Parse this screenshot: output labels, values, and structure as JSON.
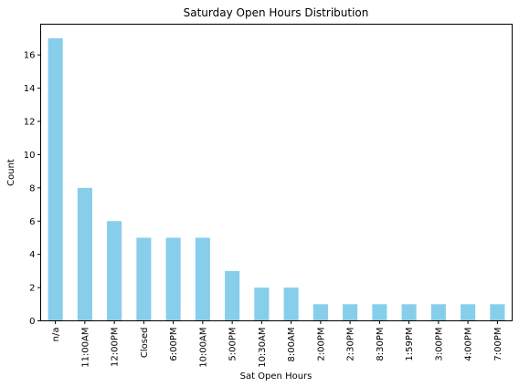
{
  "chart_data": {
    "type": "bar",
    "title": "Saturday Open Hours Distribution",
    "xlabel": "Sat Open Hours",
    "ylabel": "Count",
    "categories": [
      "n/a",
      "11:00AM",
      "12:00PM",
      "Closed",
      "6:00PM",
      "10:00AM",
      "5:00PM",
      "10:30AM",
      "8:00AM",
      "2:00PM",
      "2:30PM",
      "8:30PM",
      "1:59PM",
      "3:00PM",
      "4:00PM",
      "7:00PM"
    ],
    "values": [
      17,
      8,
      6,
      5,
      5,
      5,
      3,
      2,
      2,
      1,
      1,
      1,
      1,
      1,
      1,
      1
    ],
    "ylim": [
      0,
      17.85
    ],
    "yticks": [
      0,
      2,
      4,
      6,
      8,
      10,
      12,
      14,
      16
    ],
    "bar_color": "#87ceeb",
    "grid": false,
    "legend": "none"
  }
}
